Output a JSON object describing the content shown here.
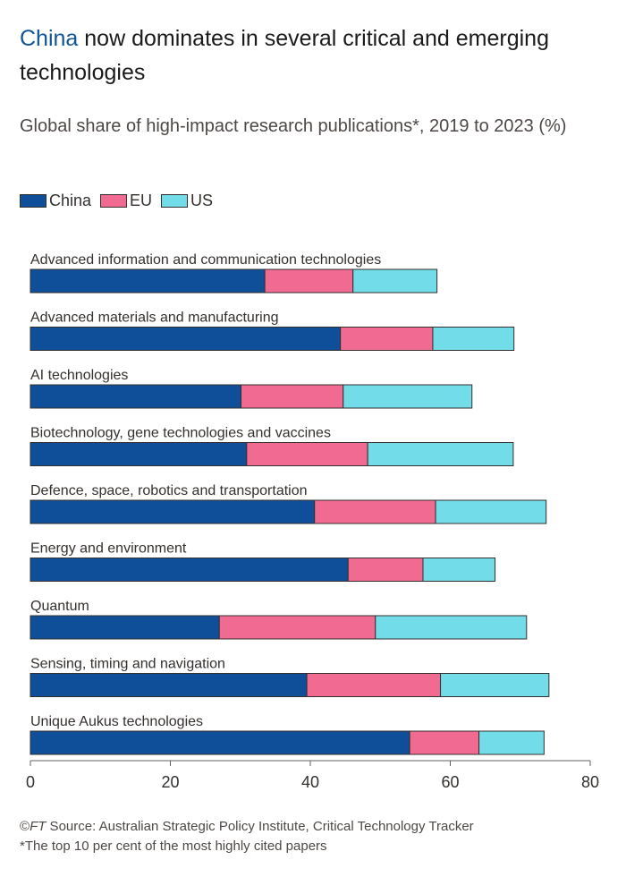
{
  "header": {
    "title_highlight": "China",
    "title_rest": " now dominates in several critical and emerging technologies",
    "subtitle": "Global share of high-impact research publications*, 2019 to 2023 (%)"
  },
  "footer": {
    "copyright": "©",
    "brand": "FT",
    "source": " Source: Australian Strategic Policy Institute, Critical Technology Tracker",
    "note": "*The top 10 per cent of the most highly cited papers"
  },
  "colors": {
    "China": "#0f4f99",
    "EU": "#f06a92",
    "US": "#72dde8",
    "bar_outline": "#33302e",
    "axis": "#66605c",
    "text": "#33302e"
  },
  "chart_data": {
    "type": "bar",
    "orientation": "horizontal",
    "stacked": true,
    "categories": [
      "Advanced information and communication technologies",
      "Advanced materials and manufacturing",
      "AI technologies",
      "Biotechnology, gene technologies and vaccines",
      "Defence, space, robotics and transportation",
      "Energy and environment",
      "Quantum",
      "Sensing, timing and navigation",
      "Unique Aukus technologies"
    ],
    "series": [
      {
        "name": "China",
        "values": [
          33.5,
          44.3,
          30.1,
          30.9,
          40.6,
          45.4,
          27.0,
          39.5,
          54.2
        ]
      },
      {
        "name": "EU",
        "values": [
          12.6,
          13.2,
          14.6,
          17.3,
          17.3,
          10.7,
          22.3,
          19.1,
          9.9
        ]
      },
      {
        "name": "US",
        "values": [
          12.0,
          11.6,
          18.4,
          20.8,
          15.8,
          10.3,
          21.6,
          15.5,
          9.3
        ]
      }
    ],
    "xlim": [
      0,
      80
    ],
    "xticks": [
      0,
      20,
      40,
      60,
      80
    ],
    "tick_labels": [
      "0",
      "20",
      "40",
      "60",
      "80"
    ],
    "legend_position": "top-left",
    "grid": false
  }
}
